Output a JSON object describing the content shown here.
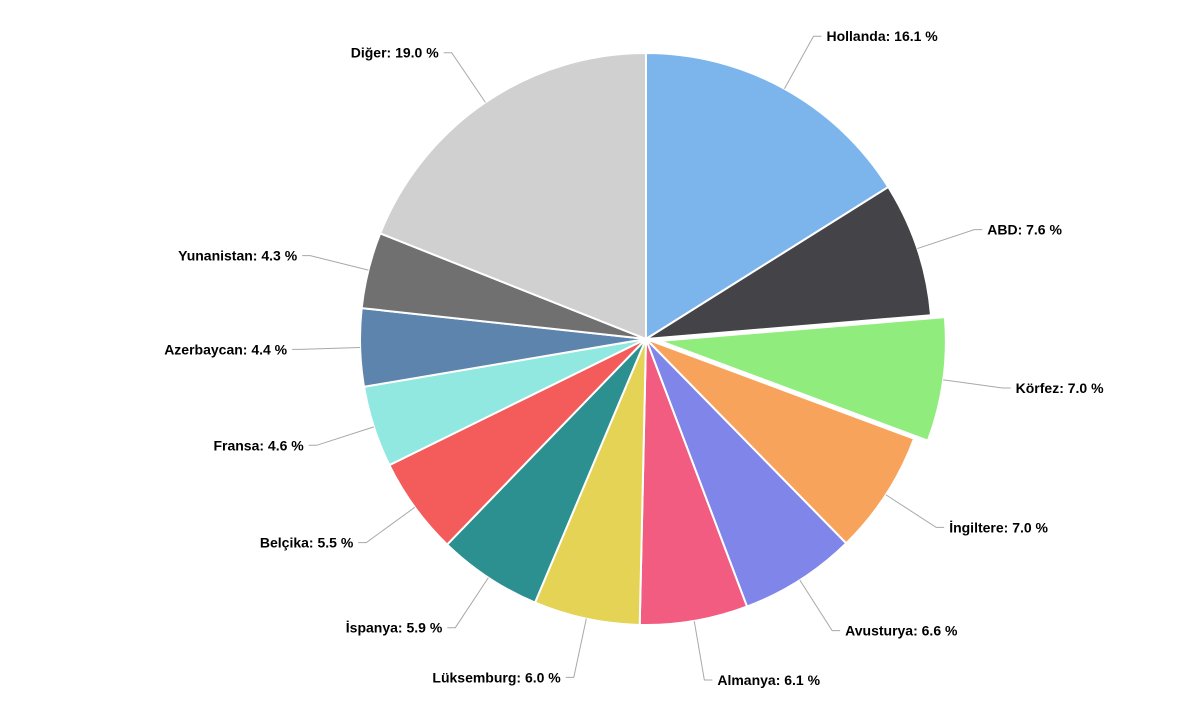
{
  "chart_data": {
    "type": "pie",
    "title": "",
    "legend": "none",
    "slices": [
      {
        "label": "Hollanda",
        "value": 16.1,
        "color": "#7cb5ec",
        "text": "Hollanda: 16.1 %"
      },
      {
        "label": "ABD",
        "value": 7.6,
        "color": "#434348",
        "text": "ABD: 7.6 %"
      },
      {
        "label": "Körfez",
        "value": 7.0,
        "color": "#90ed7d",
        "text": "Körfez: 7.0 %",
        "sliced": true
      },
      {
        "label": "İngiltere",
        "value": 7.0,
        "color": "#f7a35c",
        "text": "İngiltere: 7.0 %"
      },
      {
        "label": "Avusturya",
        "value": 6.6,
        "color": "#8085e9",
        "text": "Avusturya: 6.6 %"
      },
      {
        "label": "Almanya",
        "value": 6.1,
        "color": "#f15c80",
        "text": "Almanya: 6.1 %"
      },
      {
        "label": "Lüksemburg",
        "value": 6.0,
        "color": "#e4d354",
        "text": "Lüksemburg: 6.0 %"
      },
      {
        "label": "İspanya",
        "value": 5.9,
        "color": "#2b908f",
        "text": "İspanya: 5.9 %"
      },
      {
        "label": "Belçika",
        "value": 5.5,
        "color": "#f45b5b",
        "text": "Belçika: 5.5 %"
      },
      {
        "label": "Fransa",
        "value": 4.6,
        "color": "#91e8e1",
        "text": "Fransa: 4.6 %"
      },
      {
        "label": "Azerbaycan",
        "value": 4.4,
        "color": "#5c84ad",
        "text": "Azerbaycan: 4.4 %"
      },
      {
        "label": "Yunanistan",
        "value": 4.3,
        "color": "#707070",
        "text": "Yunanistan: 4.3 %"
      },
      {
        "label": "Diğer",
        "value": 19.0,
        "color": "#d0d0d0",
        "text": "Diğer: 19.0 %"
      }
    ]
  }
}
